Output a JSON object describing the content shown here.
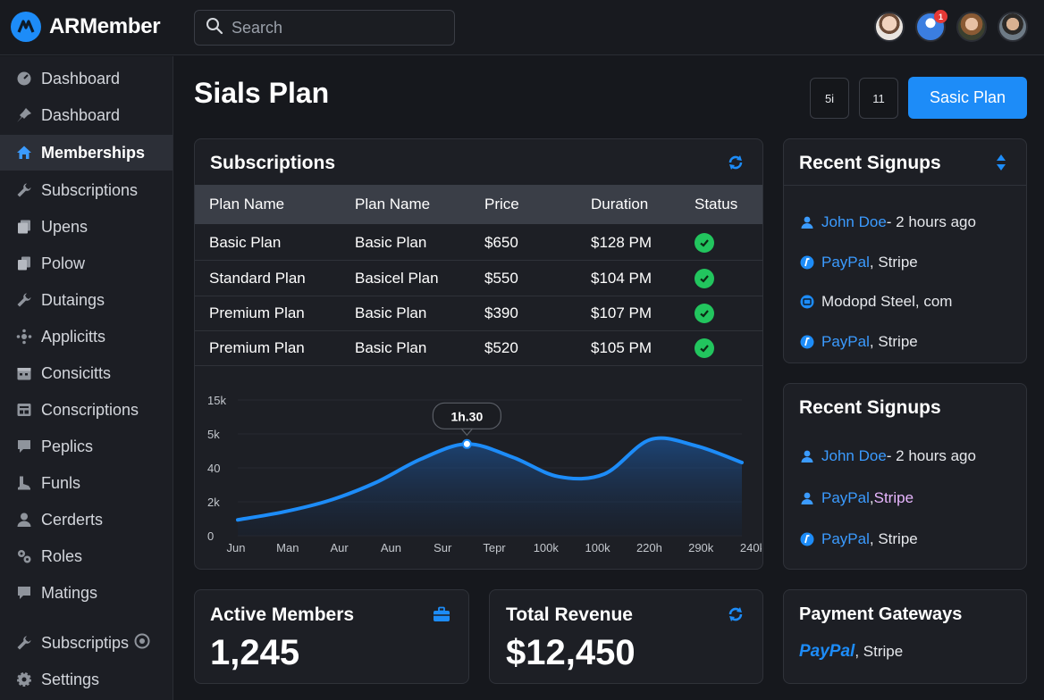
{
  "app": {
    "name": "ARMember"
  },
  "search": {
    "placeholder": "Search"
  },
  "topbar": {
    "notification_count": "1"
  },
  "sidebar": {
    "items": [
      {
        "label": "Dashboard",
        "icon": "gauge-icon"
      },
      {
        "label": "Dashboard",
        "icon": "pin-icon"
      },
      {
        "label": "Memberships",
        "icon": "home-icon",
        "active": true
      },
      {
        "label": "Subscriptions",
        "icon": "wrench-icon"
      },
      {
        "label": "Upens",
        "icon": "pages-icon"
      },
      {
        "label": "Polow",
        "icon": "copy-icon"
      },
      {
        "label": "Dutaings",
        "icon": "wrench-icon"
      },
      {
        "label": "Applicitts",
        "icon": "sparkle-icon"
      },
      {
        "label": "Consicitts",
        "icon": "calendar-icon"
      },
      {
        "label": "Conscriptions",
        "icon": "layout-icon"
      },
      {
        "label": "Peplics",
        "icon": "comment-icon"
      },
      {
        "label": "Funls",
        "icon": "boot-icon"
      },
      {
        "label": "Cerderts",
        "icon": "user-icon"
      },
      {
        "label": "Roles",
        "icon": "cogs-icon"
      },
      {
        "label": "Matings",
        "icon": "comment-icon"
      },
      {
        "label": "Subscriptips",
        "icon": "wrench-icon"
      },
      {
        "label": "Settings",
        "icon": "gear-icon"
      }
    ]
  },
  "page": {
    "title": "Sials Plan",
    "btn_a": "5i",
    "btn_b": "11",
    "primary_button": "Sasic Plan"
  },
  "subscriptions": {
    "title": "Subscriptions",
    "columns": [
      "Plan Name",
      "Plan Name",
      "Price",
      "Duration",
      "Status"
    ],
    "rows": [
      {
        "plan": "Basic Plan",
        "plan2": "Basic Plan",
        "price": "$650",
        "duration": "$128 PM"
      },
      {
        "plan": "Standard Plan",
        "plan2": "Basicel Plan",
        "price": "$550",
        "duration": "$104 PM"
      },
      {
        "plan": "Premium Plan",
        "plan2": "Basic Plan",
        "price": "$390",
        "duration": "$107 PM"
      },
      {
        "plan": "Premium Plan",
        "plan2": "Basic Plan",
        "price": "$520",
        "duration": "$105 PM"
      }
    ]
  },
  "chart_data": {
    "type": "area",
    "y_tick_labels": [
      "15k",
      "5k",
      "40",
      "2k",
      "0"
    ],
    "x_tick_labels": [
      "Jun",
      "Man",
      "Aur",
      "Aun",
      "Sur",
      "Tepr",
      "100k",
      "100k",
      "220h",
      "290k",
      "240k"
    ],
    "values": [
      18,
      27,
      40,
      60,
      87,
      104,
      89,
      67,
      70,
      109,
      102,
      83
    ],
    "y_range": [
      0,
      160
    ],
    "tooltip": {
      "label": "1h.30",
      "index": 5
    },
    "color": "#1d8cf8"
  },
  "recent_signups_1": {
    "title": "Recent Signups",
    "items": [
      {
        "name": "John Doe",
        "rest": " - 2 hours ago"
      },
      {
        "name": "PayPal",
        "rest": ", Stripe"
      },
      {
        "name": "",
        "rest": "Modopd Steel, com"
      },
      {
        "name": "PayPal",
        "rest": ", Stripe"
      }
    ]
  },
  "recent_signups_2": {
    "title": "Recent Signups",
    "items": [
      {
        "name": "John Doe",
        "rest": " - 2 hours ago"
      },
      {
        "name": "PayPal",
        "rest": ", ",
        "highlight": "Stripe"
      },
      {
        "name": "PayPal",
        "rest": ", Stripe"
      }
    ]
  },
  "stats": {
    "active_members": {
      "title": "Active Members",
      "value": "1,245"
    },
    "total_revenue": {
      "title": "Total Revenue",
      "value": "$12,450"
    }
  },
  "gateways": {
    "title": "Payment Gateways",
    "paypal": "PayPal",
    "rest": ", Stripe"
  }
}
